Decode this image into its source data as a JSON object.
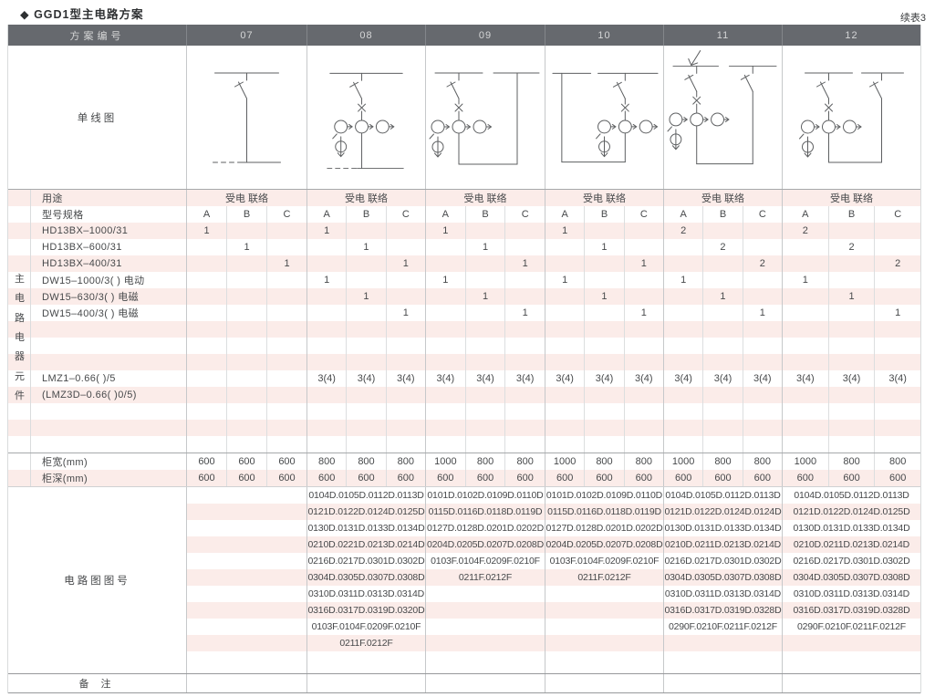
{
  "page": {
    "title": "◆ GGD1型主电路方案",
    "continuation_label": "续表3"
  },
  "colors": {
    "header_bg": "#66696e",
    "header_text": "#d5d6d7",
    "stripe_pink": "#fbece9",
    "body_text": "#47494b",
    "grid_line": "#c6c8ca",
    "strong_line": "#97999b"
  },
  "table": {
    "scheme_no_label": "方案编号",
    "schemes": [
      "07",
      "08",
      "09",
      "10",
      "11",
      "12"
    ],
    "single_line_diagram_label": "单线图",
    "side_vertical_label": "主电路电器元件",
    "usage": {
      "label": "用途",
      "values": [
        "受电 联络",
        "受电 联络",
        "受电 联络",
        "受电 联络",
        "受电 联络",
        "受电 联络"
      ]
    },
    "spec_header": {
      "label": "型号规格",
      "subcolumns": [
        "A",
        "B",
        "C"
      ]
    },
    "component_rows": [
      {
        "label": "HD13BX–1000/31",
        "values": [
          "1",
          "",
          "",
          "1",
          "",
          "",
          "1",
          "",
          "",
          "1",
          "",
          "",
          "2",
          "",
          "",
          "2",
          "",
          ""
        ]
      },
      {
        "label": "HD13BX–600/31",
        "values": [
          "",
          "1",
          "",
          "",
          "1",
          "",
          "",
          "1",
          "",
          "",
          "1",
          "",
          "",
          "2",
          "",
          "",
          "2",
          ""
        ]
      },
      {
        "label": "HD13BX–400/31",
        "values": [
          "",
          "",
          "1",
          "",
          "",
          "1",
          "",
          "",
          "1",
          "",
          "",
          "1",
          "",
          "",
          "2",
          "",
          "",
          "2"
        ]
      },
      {
        "label": "DW15–1000/3( )  电动",
        "values": [
          "",
          "",
          "",
          "1",
          "",
          "",
          "1",
          "",
          "",
          "1",
          "",
          "",
          "1",
          "",
          "",
          "1",
          "",
          ""
        ]
      },
      {
        "label": "DW15–630/3( )  电磁",
        "values": [
          "",
          "",
          "",
          "",
          "1",
          "",
          "",
          "1",
          "",
          "",
          "1",
          "",
          "",
          "1",
          "",
          "",
          "1",
          ""
        ]
      },
      {
        "label": "DW15–400/3( )  电磁",
        "values": [
          "",
          "",
          "",
          "",
          "",
          "1",
          "",
          "",
          "1",
          "",
          "",
          "1",
          "",
          "",
          "1",
          "",
          "",
          "1"
        ]
      },
      {
        "label": "",
        "values": []
      },
      {
        "label": "",
        "values": []
      },
      {
        "label": "",
        "values": []
      },
      {
        "label": "LMZ1–0.66( )/5",
        "values": [
          "",
          "",
          "",
          "3(4)",
          "3(4)",
          "3(4)",
          "3(4)",
          "3(4)",
          "3(4)",
          "3(4)",
          "3(4)",
          "3(4)",
          "3(4)",
          "3(4)",
          "3(4)",
          "3(4)",
          "3(4)",
          "3(4)"
        ]
      },
      {
        "label": "(LMZ3D–0.66( )0/5)",
        "values": []
      },
      {
        "label": "",
        "values": []
      },
      {
        "label": "",
        "values": []
      },
      {
        "label": "",
        "values": []
      }
    ],
    "cabinet_width": {
      "label": "柜宽(mm)",
      "values": [
        "600",
        "600",
        "600",
        "800",
        "800",
        "800",
        "1000",
        "800",
        "800",
        "1000",
        "800",
        "800",
        "1000",
        "800",
        "800",
        "1000",
        "800",
        "800"
      ]
    },
    "cabinet_depth": {
      "label": "柜深(mm)",
      "values": [
        "600",
        "600",
        "600",
        "600",
        "600",
        "600",
        "600",
        "600",
        "600",
        "600",
        "600",
        "600",
        "600",
        "600",
        "600",
        "600",
        "600",
        "600"
      ]
    },
    "drawing_numbers": {
      "label": "电路图图号",
      "by_scheme": [
        [],
        [
          "0104D.0105D.0112D.0113D",
          "0121D.0122D.0124D.0125D",
          "0130D.0131D.0133D.0134D",
          "0210D.0221D.0213D.0214D",
          "0216D.0217D.0301D.0302D",
          "0304D.0305D.0307D.0308D",
          "0310D.0311D.0313D.0314D",
          "0316D.0317D.0319D.0320D",
          "0103F.0104F.0209F.0210F",
          "0211F.0212F"
        ],
        [
          "0101D.0102D.0109D.0110D",
          "0115D.0116D.0118D.0119D",
          "0127D.0128D.0201D.0202D",
          "0204D.0205D.0207D.0208D",
          "0103F.0104F.0209F.0210F",
          "0211F.0212F"
        ],
        [
          "0101D.0102D.0109D.0110D",
          "0115D.0116D.0118D.0119D",
          "0127D.0128D.0201D.0202D",
          "0204D.0205D.0207D.0208D",
          "0103F.0104F.0209F.0210F",
          "0211F.0212F"
        ],
        [
          "0104D.0105D.0112D.0113D",
          "0121D.0122D.0124D.0124D",
          "0130D.0131D.0133D.0134D",
          "0210D.0211D.0213D.0214D",
          "0216D.0217D.0301D.0302D",
          "0304D.0305D.0307D.0308D",
          "0310D.0311D.0313D.0314D",
          "0316D.0317D.0319D.0328D",
          "0290F.0210F.0211F.0212F"
        ],
        [
          "0104D.0105D.0112D.0113D",
          "0121D.0122D.0124D.0125D",
          "0130D.0131D.0133D.0134D",
          "0210D.0211D.0213D.0214D",
          "0216D.0217D.0301D.0302D",
          "0304D.0305D.0307D.0308D",
          "0310D.0311D.0313D.0314D",
          "0316D.0317D.0319D.0328D",
          "0290F.0210F.0211F.0212F"
        ]
      ]
    },
    "remark": {
      "label": "备 注"
    }
  }
}
